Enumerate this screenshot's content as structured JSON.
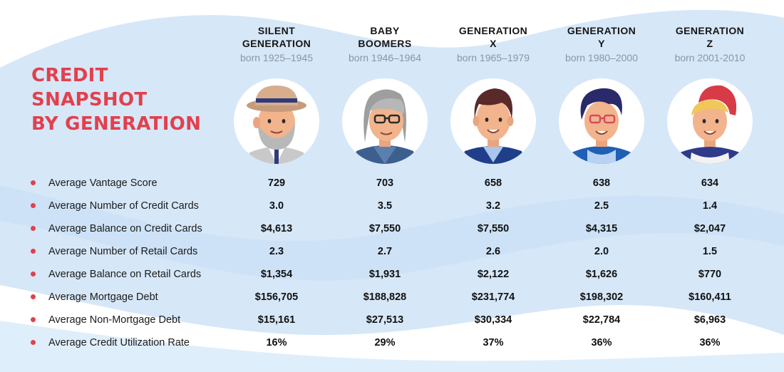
{
  "colors": {
    "accent": "#e2404d",
    "background_blob": "#d6e7f8",
    "born_text": "#8a96a6"
  },
  "title": [
    "CREDIT",
    "SNAPSHOT",
    "BY GENERATION"
  ],
  "generations": [
    {
      "name_lines": [
        "SILENT",
        "GENERATION"
      ],
      "born": "born 1925–1945",
      "avatar": "elderly-man-hat-avatar"
    },
    {
      "name_lines": [
        "BABY",
        "BOOMERS"
      ],
      "born": "born 1946–1964",
      "avatar": "gray-hair-glasses-avatar"
    },
    {
      "name_lines": [
        "GENERATION",
        "X"
      ],
      "born": "born 1965–1979",
      "avatar": "dark-hair-man-avatar"
    },
    {
      "name_lines": [
        "GENERATION",
        "Y"
      ],
      "born": "born 1980–2000",
      "avatar": "glasses-millennial-avatar"
    },
    {
      "name_lines": [
        "GENERATION",
        "Z"
      ],
      "born": "born 2001-2010",
      "avatar": "red-cap-teen-avatar"
    }
  ],
  "metrics": [
    {
      "label": "Average Vantage Score",
      "values": [
        "729",
        "703",
        "658",
        "638",
        "634"
      ]
    },
    {
      "label": "Average Number of Credit Cards",
      "values": [
        "3.0",
        "3.5",
        "3.2",
        "2.5",
        "1.4"
      ]
    },
    {
      "label": "Average Balance on Credit Cards",
      "values": [
        "$4,613",
        "$7,550",
        "$7,550",
        "$4,315",
        "$2,047"
      ]
    },
    {
      "label": "Average Number of Retail Cards",
      "values": [
        "2.3",
        "2.7",
        "2.6",
        "2.0",
        "1.5"
      ]
    },
    {
      "label": "Average Balance on Retail Cards",
      "values": [
        "$1,354",
        "$1,931",
        "$2,122",
        "$1,626",
        "$770"
      ]
    },
    {
      "label": "Average Mortgage Debt",
      "values": [
        "$156,705",
        "$188,828",
        "$231,774",
        "$198,302",
        "$160,411"
      ]
    },
    {
      "label": "Average Non-Mortgage Debt",
      "values": [
        "$15,161",
        "$27,513",
        "$30,334",
        "$22,784",
        "$6,963"
      ]
    },
    {
      "label": "Average Credit Utilization Rate",
      "values": [
        "16%",
        "29%",
        "37%",
        "36%",
        "36%"
      ]
    }
  ]
}
